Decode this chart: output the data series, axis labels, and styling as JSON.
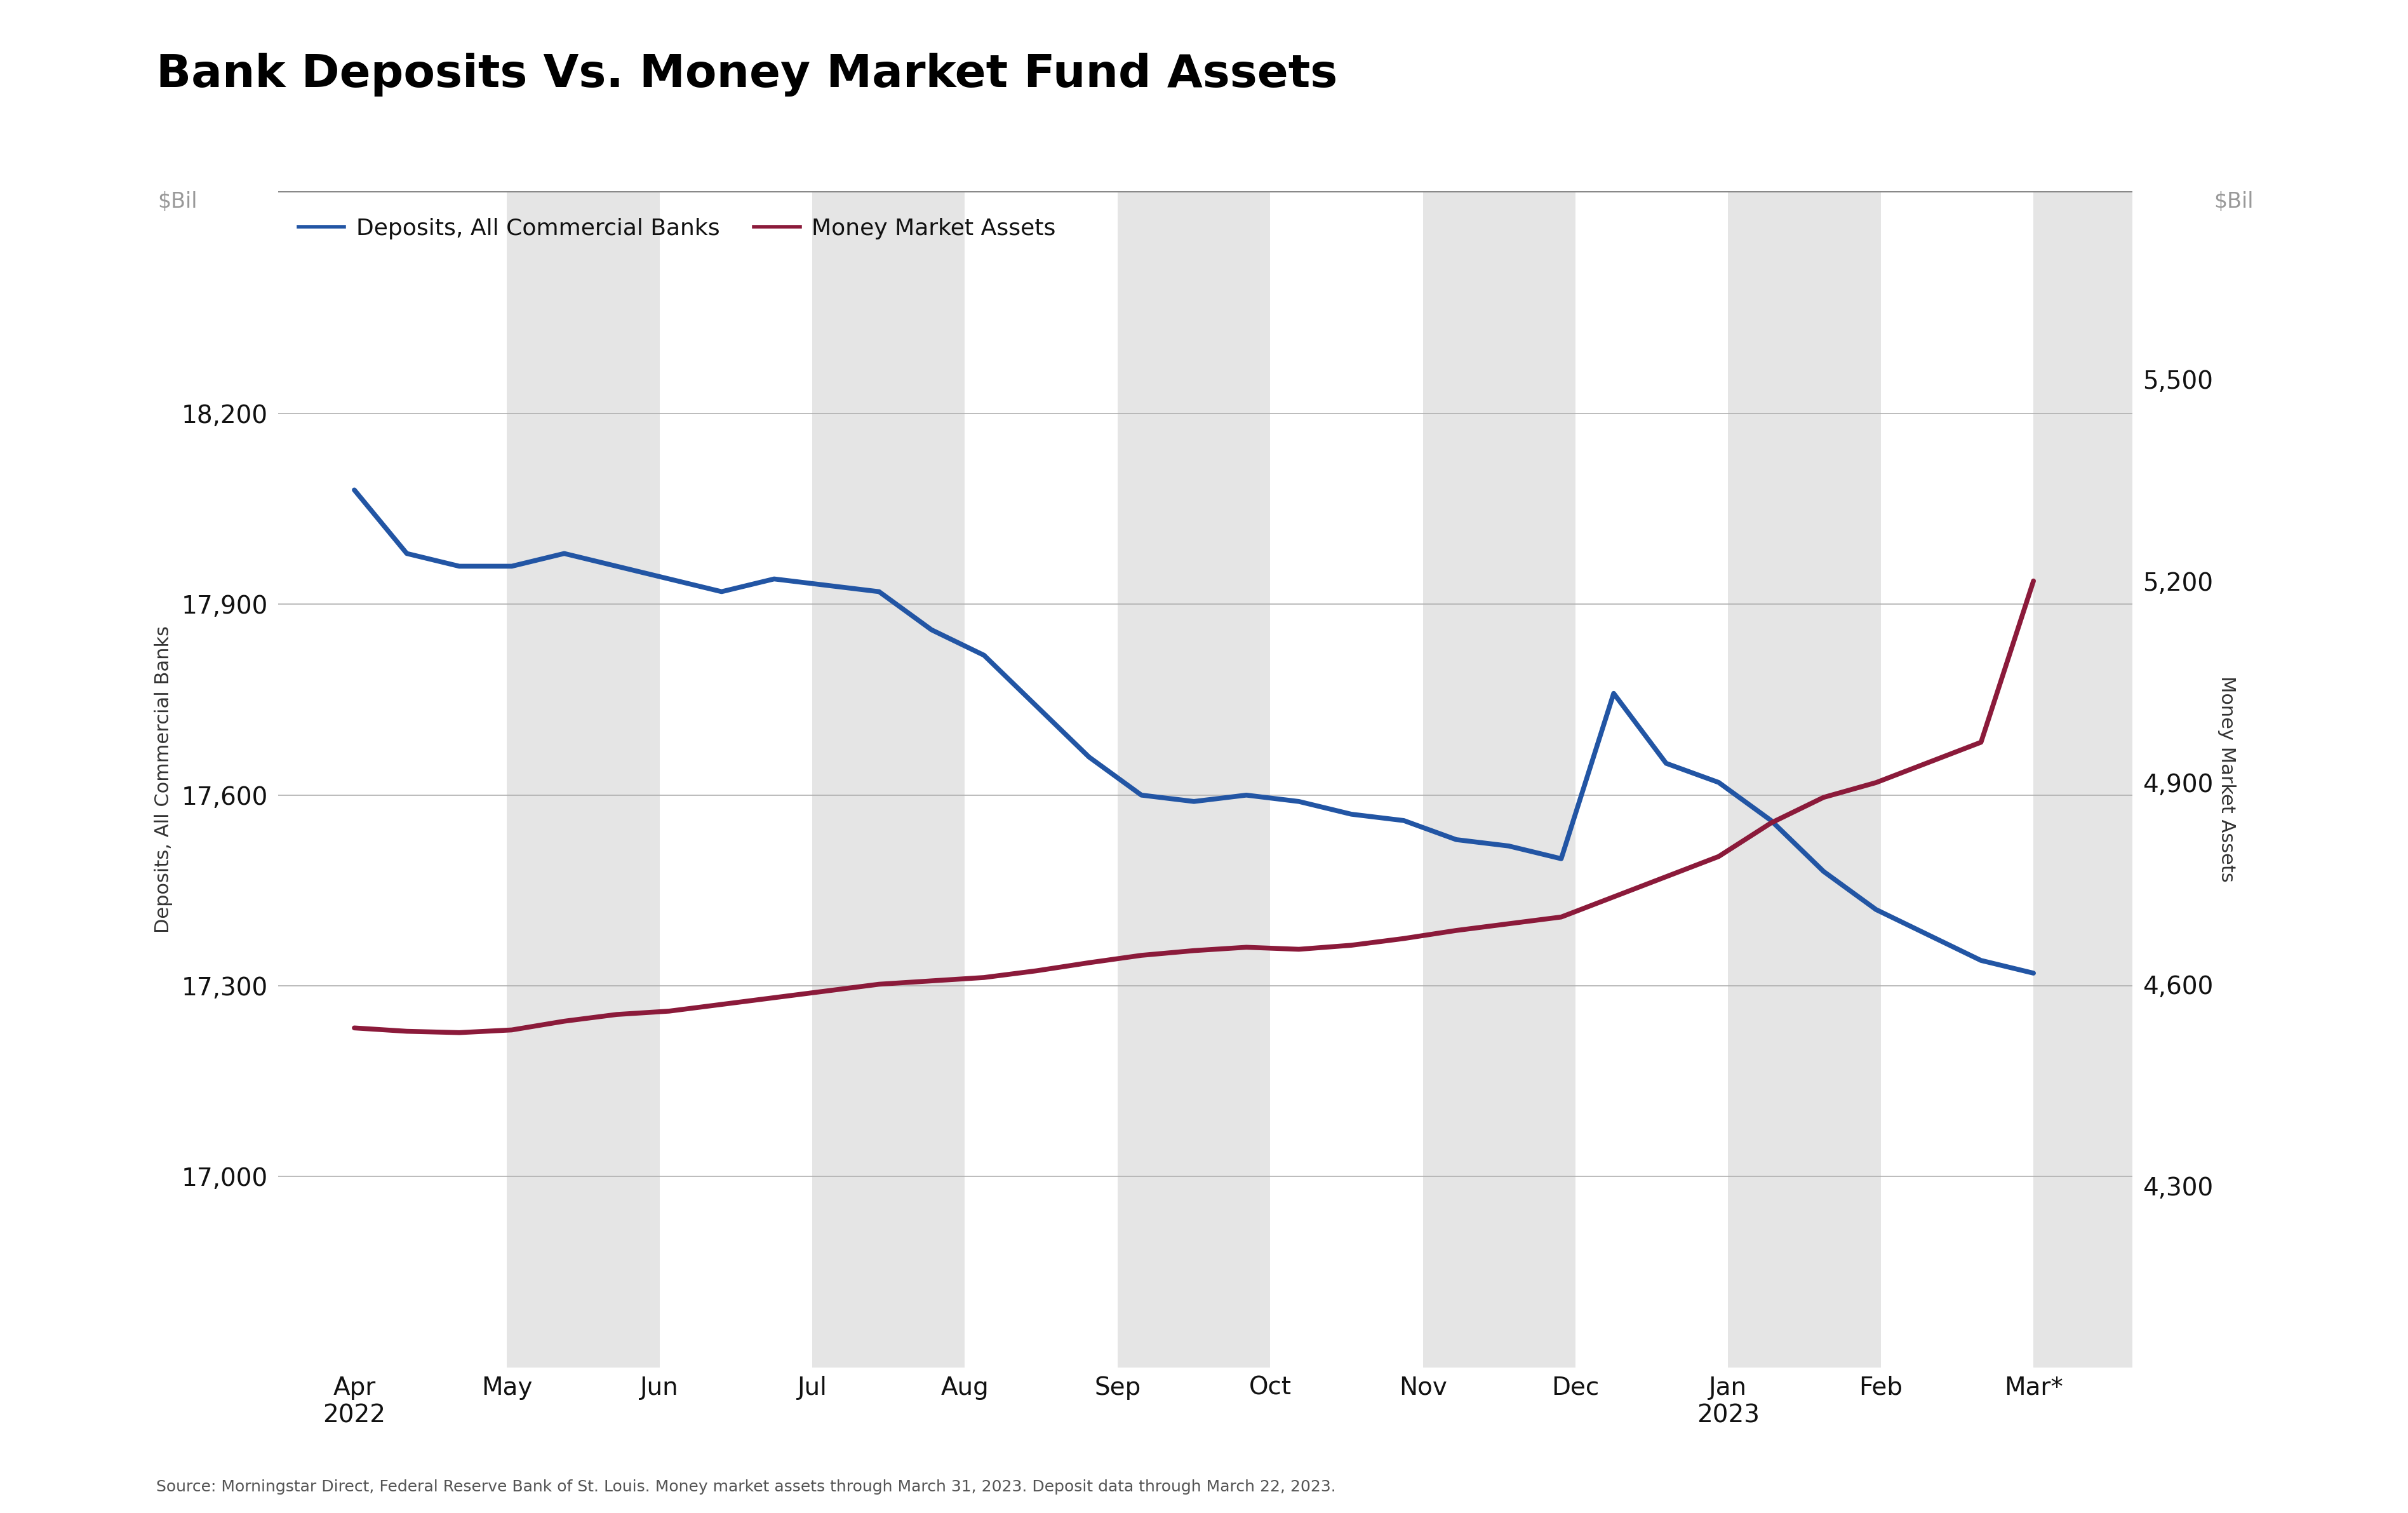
{
  "title": "Bank Deposits Vs. Money Market Fund Assets",
  "legend_labels": [
    "Deposits, All Commercial Banks",
    "Money Market Assets"
  ],
  "line_colors": [
    "#2255a4",
    "#8b1a3a"
  ],
  "x_labels": [
    "Apr\n2022",
    "May",
    "Jun",
    "Jul",
    "Aug",
    "Sep",
    "Oct",
    "Nov",
    "Dec",
    "Jan\n2023",
    "Feb",
    "Mar*"
  ],
  "deposits_values": [
    18080,
    17980,
    17960,
    17960,
    17980,
    17960,
    17940,
    17920,
    17940,
    17930,
    17920,
    17860,
    17820,
    17740,
    17660,
    17600,
    17590,
    17600,
    17590,
    17570,
    17560,
    17530,
    17520,
    17500,
    17760,
    17650,
    17620,
    17560,
    17480,
    17420,
    17380,
    17340,
    17320
  ],
  "mmf_values": [
    4535,
    4530,
    4528,
    4532,
    4545,
    4555,
    4560,
    4570,
    4580,
    4590,
    4600,
    4605,
    4610,
    4620,
    4632,
    4643,
    4650,
    4655,
    4652,
    4658,
    4668,
    4680,
    4690,
    4700,
    4730,
    4760,
    4790,
    4840,
    4878,
    4900,
    4930,
    4960,
    5200
  ],
  "left_yticks": [
    17000,
    17300,
    17600,
    17900,
    18200
  ],
  "right_yticks": [
    4300,
    4600,
    4900,
    5200,
    5500
  ],
  "left_ylim": [
    16700,
    18550
  ],
  "right_ylim": [
    4030,
    5780
  ],
  "ylabel_left": "Deposits, All Commercial Banks",
  "ylabel_right": "Money Market Assets",
  "source_text": "Source: Morningstar Direct, Federal Reserve Bank of St. Louis. Money market assets through March 31, 2023. Deposit data through March 22, 2023.",
  "left_unit": "$Bil",
  "right_unit": "$Bil",
  "linewidth": 5.5,
  "shaded_months": [
    1,
    3,
    5,
    7,
    9,
    11
  ],
  "shade_color": "#e5e5e5",
  "gridline_color": "#b0b0b0",
  "top_border_color": "#888888",
  "tick_label_color": "#111111",
  "unit_label_color": "#999999",
  "source_color": "#555555",
  "title_fontsize": 52,
  "legend_fontsize": 26,
  "tick_fontsize": 28,
  "unit_fontsize": 24,
  "ylabel_fontsize": 22,
  "source_fontsize": 18
}
